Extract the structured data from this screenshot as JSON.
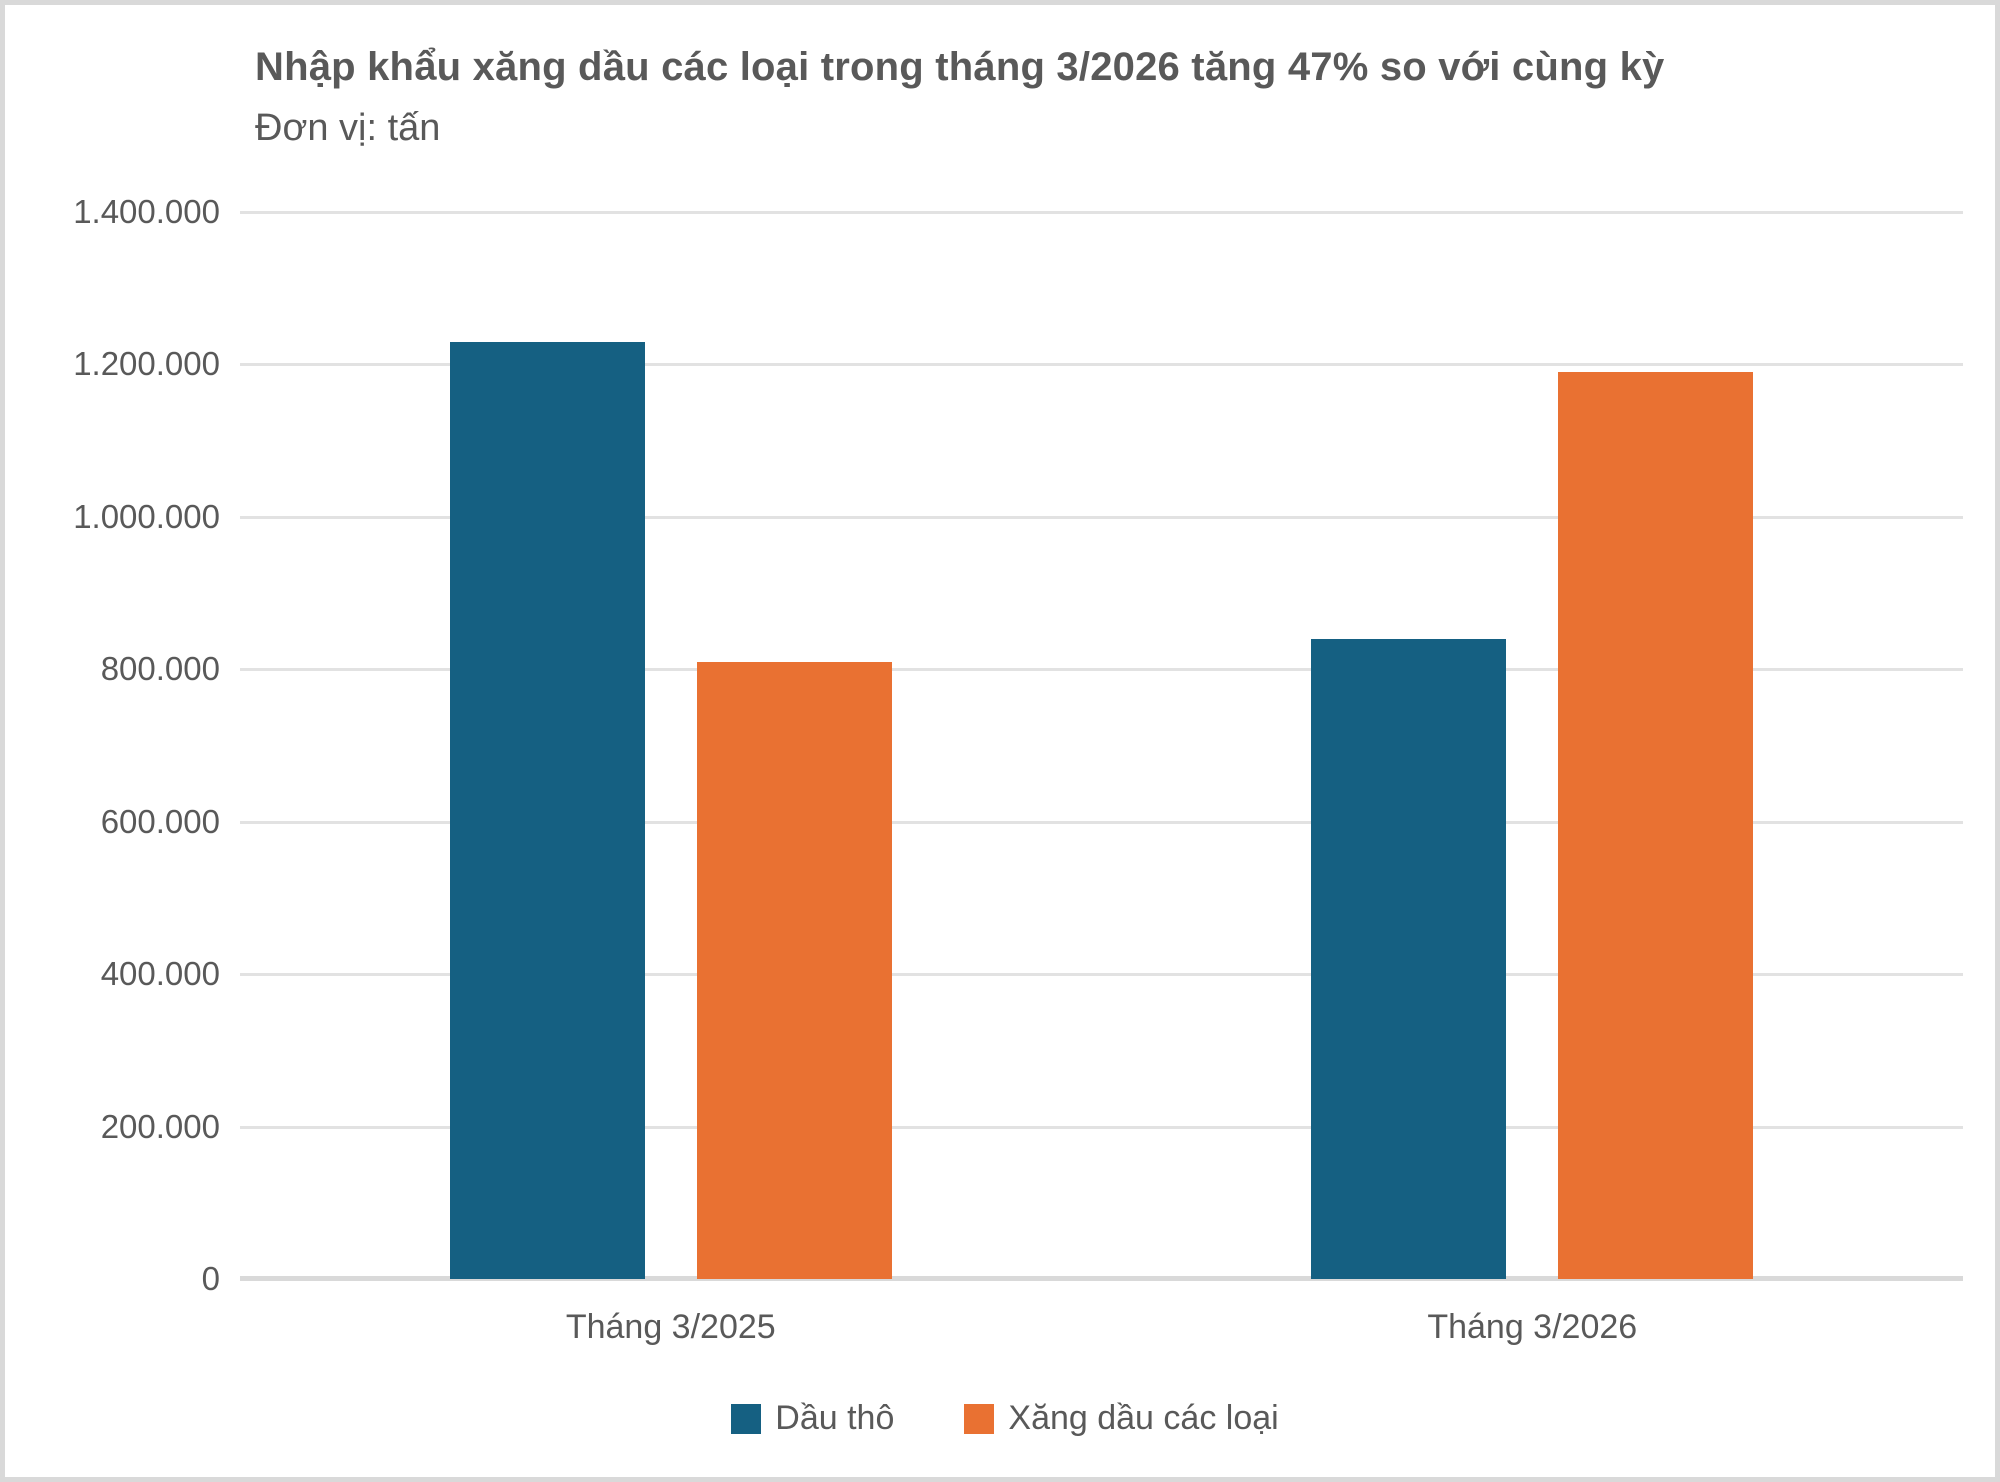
{
  "header": {
    "title": "Nhập khẩu xăng dầu các loại trong tháng 3/2026 tăng 47% so với cùng kỳ",
    "subtitle": "Đơn vị: tấn"
  },
  "chart_data": {
    "type": "bar",
    "categories": [
      "Tháng 3/2025",
      "Tháng 3/2026"
    ],
    "series": [
      {
        "name": "Dầu thô",
        "color": "#156082",
        "values": [
          1230000,
          840000
        ]
      },
      {
        "name": "Xăng dầu các loại",
        "color": "#e97132",
        "values": [
          810000,
          1190000
        ]
      }
    ],
    "ylim": [
      0,
      1400000
    ],
    "ytick_step": 200000,
    "ytick_labels": [
      "0",
      "200.000",
      "400.000",
      "600.000",
      "800.000",
      "1.000.000",
      "1.200.000",
      "1.400.000"
    ],
    "grid": true,
    "legend_position": "bottom"
  },
  "colors": {
    "text": "#595959",
    "gridline": "#e2e2e2",
    "axis_line": "#d9d9d9",
    "frame_border": "#d9d9d9",
    "background": "#ffffff"
  }
}
